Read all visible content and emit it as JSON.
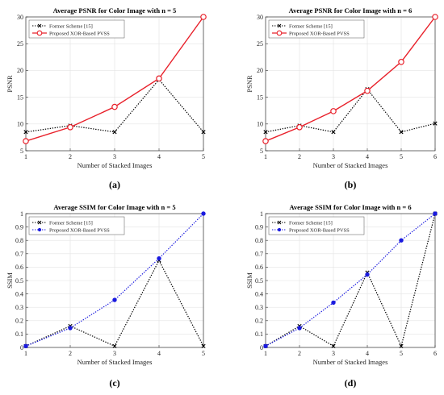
{
  "chart_data": [
    {
      "panel_label": "(a)",
      "type": "line",
      "title": "Average PSNR for Color Image with n = 5",
      "xlabel": "Number of Stacked Images",
      "ylabel": "PSNR",
      "x": [
        1,
        2,
        3,
        4,
        5
      ],
      "xlim": [
        1,
        5
      ],
      "ylim": [
        5,
        30
      ],
      "xticks": [
        "1",
        "2",
        "3",
        "4",
        "5"
      ],
      "yticks": [
        "5",
        "10",
        "15",
        "20",
        "25",
        "30"
      ],
      "ytick_values": [
        5,
        10,
        15,
        20,
        25,
        30
      ],
      "grid": true,
      "legend_position": "top-left",
      "series": [
        {
          "name": "Former Scheme [15]",
          "values": [
            8.5,
            9.7,
            8.5,
            18.3,
            8.5
          ],
          "color": "#000000",
          "style": "dotted",
          "marker": "x"
        },
        {
          "name": "Proposed XOR-Based PVSS",
          "values": [
            6.8,
            9.4,
            13.2,
            18.5,
            30.0
          ],
          "color": "#e8202a",
          "style": "solid",
          "marker": "o"
        }
      ]
    },
    {
      "panel_label": "(b)",
      "type": "line",
      "title": "Average PSNR for Color Image with n = 6",
      "xlabel": "Number of Stacked Images",
      "ylabel": "PSNR",
      "x": [
        1,
        2,
        3,
        4,
        5,
        6
      ],
      "xlim": [
        1,
        6
      ],
      "ylim": [
        5,
        30
      ],
      "xticks": [
        "1",
        "2",
        "3",
        "4",
        "5",
        "6"
      ],
      "yticks": [
        "5",
        "10",
        "15",
        "20",
        "25",
        "30"
      ],
      "ytick_values": [
        5,
        10,
        15,
        20,
        25,
        30
      ],
      "grid": true,
      "legend_position": "top-left",
      "series": [
        {
          "name": "Former Scheme [15]",
          "values": [
            8.5,
            9.7,
            8.5,
            16.5,
            8.5,
            10.1
          ],
          "color": "#000000",
          "style": "dotted",
          "marker": "x"
        },
        {
          "name": "Proposed XOR-Based PVSS",
          "values": [
            6.8,
            9.4,
            12.4,
            16.2,
            21.6,
            30.0
          ],
          "color": "#e8202a",
          "style": "solid",
          "marker": "o"
        }
      ]
    },
    {
      "panel_label": "(c)",
      "type": "line",
      "title": "Average SSIM for Color Image with n = 5",
      "xlabel": "Number of Stacked Images",
      "ylabel": "SSIM",
      "x": [
        1,
        2,
        3,
        4,
        5
      ],
      "xlim": [
        1,
        5
      ],
      "ylim": [
        0,
        1
      ],
      "xticks": [
        "1",
        "2",
        "3",
        "4",
        "5"
      ],
      "yticks": [
        "0",
        "0.1",
        "0.2",
        "0.3",
        "0.4",
        "0.5",
        "0.6",
        "0.7",
        "0.8",
        "0.9",
        "1"
      ],
      "ytick_values": [
        0,
        0.1,
        0.2,
        0.3,
        0.4,
        0.5,
        0.6,
        0.7,
        0.8,
        0.9,
        1
      ],
      "grid": true,
      "legend_position": "top-left",
      "series": [
        {
          "name": "Former Scheme [15]",
          "values": [
            0.01,
            0.16,
            0.01,
            0.65,
            0.01
          ],
          "color": "#000000",
          "style": "dotted",
          "marker": "x"
        },
        {
          "name": "Proposed XOR-Based PVSS",
          "values": [
            0.01,
            0.145,
            0.355,
            0.665,
            1.0
          ],
          "color": "#1a1adf",
          "style": "dotted",
          "marker": "filled-circle"
        }
      ]
    },
    {
      "panel_label": "(d)",
      "type": "line",
      "title": "Average SSIM for Color Image with n = 6",
      "xlabel": "Number of Stacked Images",
      "ylabel": "SSIM",
      "x": [
        1,
        2,
        3,
        4,
        5,
        6
      ],
      "xlim": [
        1,
        6
      ],
      "ylim": [
        0,
        1
      ],
      "xticks": [
        "1",
        "2",
        "3",
        "4",
        "5",
        "6"
      ],
      "yticks": [
        "0",
        "0.1",
        "0.2",
        "0.3",
        "0.4",
        "0.5",
        "0.6",
        "0.7",
        "0.8",
        "0.9",
        "1"
      ],
      "ytick_values": [
        0,
        0.1,
        0.2,
        0.3,
        0.4,
        0.5,
        0.6,
        0.7,
        0.8,
        0.9,
        1
      ],
      "grid": true,
      "legend_position": "top-left",
      "series": [
        {
          "name": "Former Scheme [15]",
          "values": [
            0.01,
            0.16,
            0.01,
            0.56,
            0.01,
            1.0
          ],
          "color": "#000000",
          "style": "dotted",
          "marker": "x"
        },
        {
          "name": "Proposed XOR-Based PVSS",
          "values": [
            0.01,
            0.145,
            0.335,
            0.545,
            0.8,
            1.0
          ],
          "color": "#1a1adf",
          "style": "dotted",
          "marker": "filled-circle"
        }
      ]
    }
  ]
}
